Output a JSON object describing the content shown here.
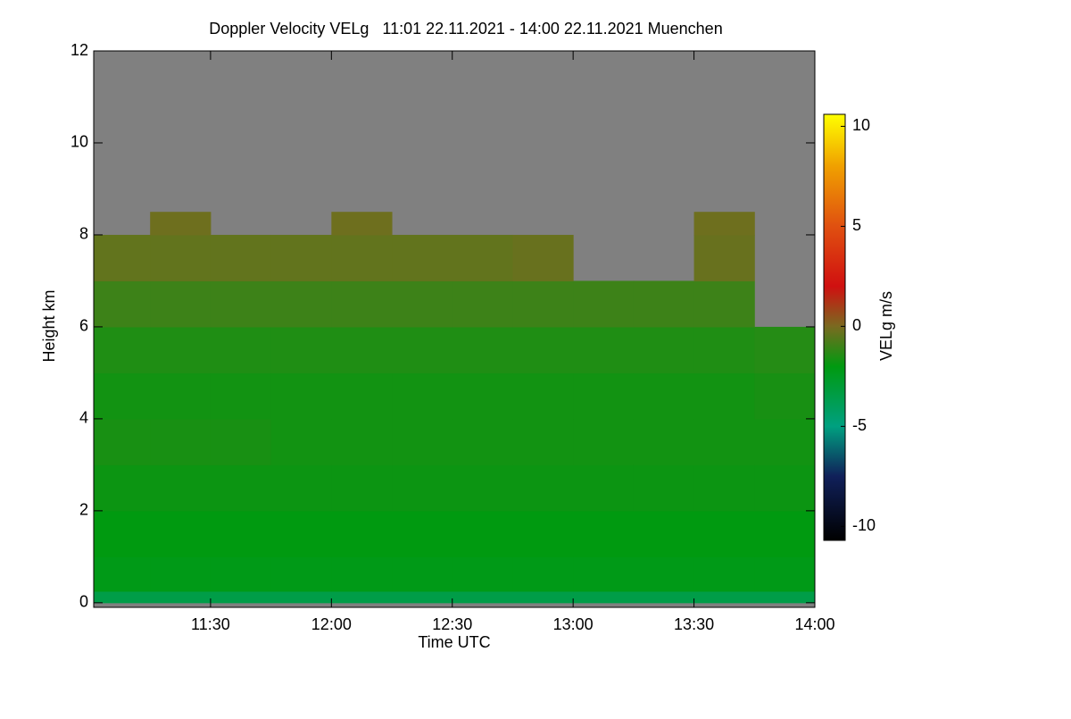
{
  "chart_data": {
    "type": "heatmap",
    "title": "Doppler Velocity VELg   11:01 22.11.2021 - 14:00 22.11.2021 Muenchen",
    "xlabel": "Time UTC",
    "ylabel": "Height km",
    "colorbar_label": "VELg m/s",
    "x_bins": [
      "11:01",
      "11:15",
      "11:30",
      "11:45",
      "12:00",
      "12:15",
      "12:30",
      "12:45",
      "13:00",
      "13:15",
      "13:30",
      "13:45",
      "14:00"
    ],
    "y_bins": [
      0,
      0.25,
      1,
      2,
      3,
      4,
      5,
      6,
      7,
      8,
      8.5
    ],
    "values": [
      [
        -3.5,
        -3.5,
        -3.5,
        -3.5,
        -3.5,
        -3.5,
        -3.5,
        -3.5,
        -3.5,
        -3.5,
        -3.5,
        -3.5
      ],
      [
        -2.2,
        -2.2,
        -2.2,
        -2.2,
        -2.2,
        -2.2,
        -2.2,
        -2.2,
        -2.2,
        -2.2,
        -2.2,
        -2.2
      ],
      [
        -2.0,
        -2.0,
        -2.0,
        -2.0,
        -2.0,
        -2.0,
        -2.0,
        -2.0,
        -2.0,
        -2.0,
        -2.0,
        -2.0
      ],
      [
        -1.8,
        -1.8,
        -1.8,
        -1.8,
        -1.8,
        -1.8,
        -1.8,
        -1.8,
        -1.8,
        -1.8,
        -1.8,
        -1.8
      ],
      [
        -1.6,
        -1.6,
        -1.6,
        -1.7,
        -1.7,
        -1.7,
        -1.7,
        -1.7,
        -1.7,
        -1.7,
        -1.7,
        -1.7
      ],
      [
        -1.7,
        -1.7,
        -1.7,
        -1.7,
        -1.7,
        -1.7,
        -1.7,
        -1.7,
        -1.7,
        -1.7,
        -1.7,
        -1.6
      ],
      [
        -1.5,
        -1.5,
        -1.5,
        -1.5,
        -1.5,
        -1.5,
        -1.5,
        -1.5,
        -1.5,
        -1.5,
        -1.5,
        -1.4
      ],
      [
        -1.0,
        -1.0,
        -1.0,
        -1.0,
        -1.0,
        -1.0,
        -1.0,
        -1.0,
        -1.0,
        -1.0,
        -1.0,
        null
      ],
      [
        -0.4,
        -0.4,
        -0.4,
        -0.4,
        -0.4,
        -0.4,
        -0.4,
        -0.3,
        null,
        null,
        -0.3,
        null
      ],
      [
        null,
        -0.2,
        null,
        null,
        -0.2,
        null,
        null,
        null,
        null,
        null,
        -0.2,
        null
      ]
    ],
    "background": "#808080",
    "xlim": [
      "11:01",
      "14:00"
    ],
    "xticks": [
      "11:30",
      "12:00",
      "12:30",
      "13:00",
      "13:30",
      "14:00"
    ],
    "ylim": [
      -0.1,
      12
    ],
    "yticks": [
      0,
      2,
      4,
      6,
      8,
      10,
      12
    ],
    "zlim": [
      -10.7,
      10.6
    ],
    "zticks": [
      -10,
      -5,
      0,
      5,
      10
    ],
    "colormap": [
      {
        "value": -10.7,
        "color": "#000000"
      },
      {
        "value": -7.5,
        "color": "#10205a"
      },
      {
        "value": -5,
        "color": "#00a080"
      },
      {
        "value": -2,
        "color": "#009a10"
      },
      {
        "value": 0,
        "color": "#7a6a20"
      },
      {
        "value": 2,
        "color": "#d01010"
      },
      {
        "value": 5,
        "color": "#e05010"
      },
      {
        "value": 8,
        "color": "#f0a000"
      },
      {
        "value": 10.6,
        "color": "#ffff00"
      }
    ]
  }
}
